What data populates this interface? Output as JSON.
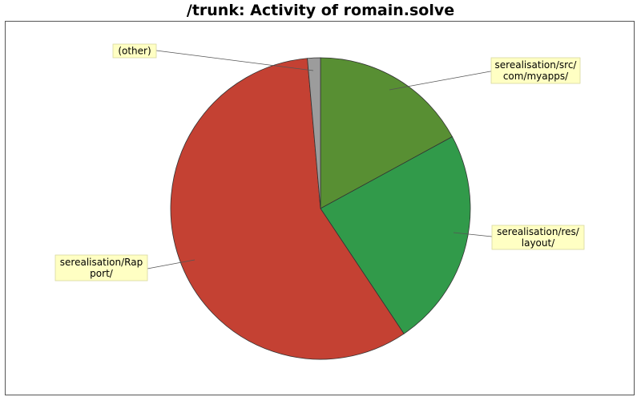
{
  "chart_data": {
    "type": "pie",
    "title": "/trunk: Activity of romain.solve",
    "slices": [
      {
        "label_lines": [
          "serealisation/src/",
          "com/myapps/"
        ],
        "value": 17.1,
        "color": "#588f33"
      },
      {
        "label_lines": [
          "serealisation/res/",
          "layout/"
        ],
        "value": 23.5,
        "color": "#319a4a"
      },
      {
        "label_lines": [
          "serealisation/Rap",
          "port/"
        ],
        "value": 58.0,
        "color": "#c44133"
      },
      {
        "label_lines": [
          "(other)"
        ],
        "value": 1.4,
        "color": "#9c9c9c"
      }
    ]
  }
}
